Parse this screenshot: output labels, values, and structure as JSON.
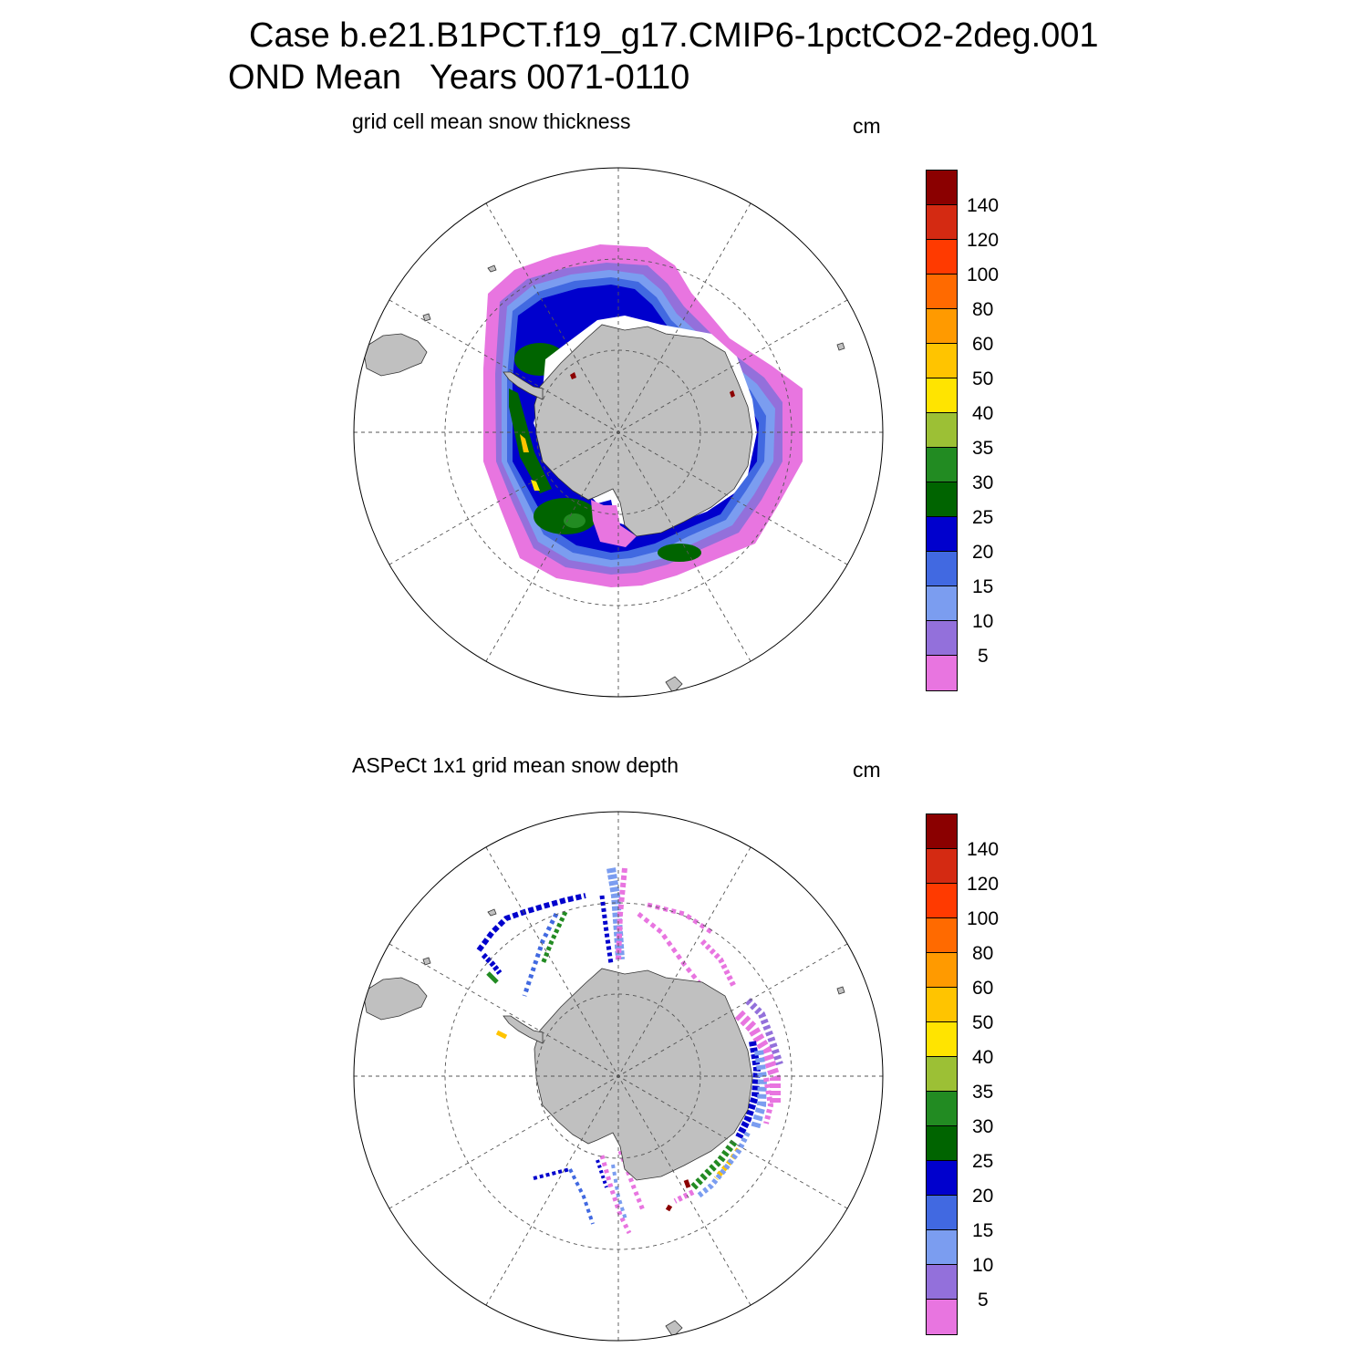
{
  "header": {
    "line1": "Case b.e21.B1PCT.f19_g17.CMIP6-1pctCO2-2deg.001",
    "line2": "OND Mean   Years 0071-0110"
  },
  "panels": [
    {
      "title": "grid cell mean snow thickness",
      "unit": "cm"
    },
    {
      "title": "ASPeCt 1x1 grid mean snow depth",
      "unit": "cm"
    }
  ],
  "colorbar": {
    "levels": [
      "140",
      "120",
      "100",
      "80",
      "60",
      "50",
      "40",
      "35",
      "30",
      "25",
      "20",
      "15",
      "10",
      "5"
    ],
    "colors": [
      "#8b0000",
      "#d42a12",
      "#ff3a00",
      "#ff6a00",
      "#ff9a00",
      "#ffc400",
      "#ffe400",
      "#9cc035",
      "#228b22",
      "#006400",
      "#0000cd",
      "#4169e1",
      "#7b9df0",
      "#9370db",
      "#e875e0"
    ]
  },
  "colors": {
    "land": "#c0c0c0",
    "ice_edge": "#e875e0",
    "background": "#ffffff"
  }
}
